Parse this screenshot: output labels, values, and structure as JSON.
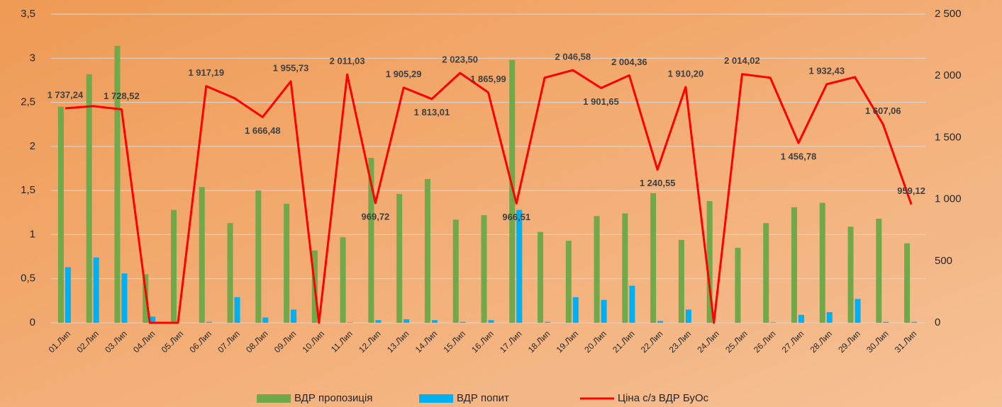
{
  "chart_data": {
    "type": "bar_line",
    "categories": [
      "01.Лип",
      "02.Лип",
      "03.Лип",
      "04.Лип",
      "05.Лип",
      "06.Лип",
      "07.Лип",
      "08.Лип",
      "09.Лип",
      "10.Лип",
      "11.Лип",
      "12.Лип",
      "13.Лип",
      "14.Лип",
      "15.Лип",
      "16.Лип",
      "17.Лип",
      "18.Лип",
      "19.Лип",
      "20.Лип",
      "21.Лип",
      "22.Лип",
      "23.Лип",
      "24.Лип",
      "25.Лип",
      "26.Лип",
      "27.Лип",
      "28.Лип",
      "29.Лип",
      "30.Лип",
      "31.Лип"
    ],
    "series": [
      {
        "name": "ВДР пропозиція",
        "color": "#70a84a",
        "type": "bar",
        "axis": "y",
        "values": [
          2.45,
          2.82,
          3.14,
          0.55,
          1.28,
          1.54,
          1.13,
          1.5,
          1.35,
          0.82,
          0.97,
          1.87,
          1.46,
          1.63,
          1.17,
          1.22,
          2.98,
          1.03,
          0.93,
          1.21,
          1.24,
          1.47,
          0.94,
          1.38,
          0.85,
          1.13,
          1.31,
          1.36,
          1.09,
          1.18,
          0.9
        ]
      },
      {
        "name": "ВДР попит",
        "color": "#00b0f0",
        "type": "bar",
        "axis": "y",
        "values": [
          0.63,
          0.74,
          0.56,
          0.07,
          0,
          0.01,
          0.29,
          0.06,
          0.15,
          0,
          0.005,
          0.03,
          0.04,
          0.03,
          0.01,
          0.03,
          1.28,
          0.01,
          0.29,
          0.26,
          0.42,
          0.02,
          0.15,
          0,
          0,
          0.005,
          0.09,
          0.12,
          0.27,
          0.01,
          0.01
        ]
      },
      {
        "name": "Ціна с/з ВДР БуОс",
        "color": "#ff0000",
        "type": "line",
        "axis": "y2",
        "values": [
          1737.24,
          1755,
          1728.52,
          0,
          0,
          1917.19,
          1820,
          1666.48,
          1955.73,
          0,
          2011.03,
          969.72,
          1905.29,
          1813.01,
          2023.5,
          1865.99,
          966.51,
          1985,
          2046.58,
          1901.65,
          2004.36,
          1240.55,
          1910.2,
          0,
          2014.02,
          1985,
          1456.78,
          1932.43,
          1990,
          1607.06,
          959.12
        ],
        "value_labels": [
          "1 737,24",
          null,
          "1 728,52",
          null,
          null,
          "1 917,19",
          null,
          "1 666,48",
          "1 955,73",
          null,
          "2 011,03",
          "969,72",
          "1 905,29",
          "1 813,01",
          "2 023,50",
          "1 865,99",
          "966,51",
          null,
          "2 046,58",
          "1 901,65",
          "2 004,36",
          "1 240,55",
          "1 910,20",
          null,
          "2 014,02",
          null,
          "1 456,78",
          "1 932,43",
          null,
          "1 607,06",
          "959,12"
        ]
      }
    ],
    "ylim": [
      0,
      3.5
    ],
    "yticks": [
      0,
      {
        "value": 0.5,
        "label": "0,5"
      },
      1,
      {
        "value": 1.5,
        "label": "1,5"
      },
      2,
      {
        "value": 2.5,
        "label": "2,5"
      },
      3,
      {
        "value": 3.5,
        "label": "3,5"
      }
    ],
    "y2lim": [
      0,
      2500
    ],
    "y2ticks": [
      0,
      500,
      {
        "value": 1000,
        "label": "1 000"
      },
      {
        "value": 1500,
        "label": "1 500"
      },
      {
        "value": 2000,
        "label": "2 000"
      },
      {
        "value": 2500,
        "label": "2 500"
      }
    ],
    "grid": true,
    "legend": "bottom"
  }
}
